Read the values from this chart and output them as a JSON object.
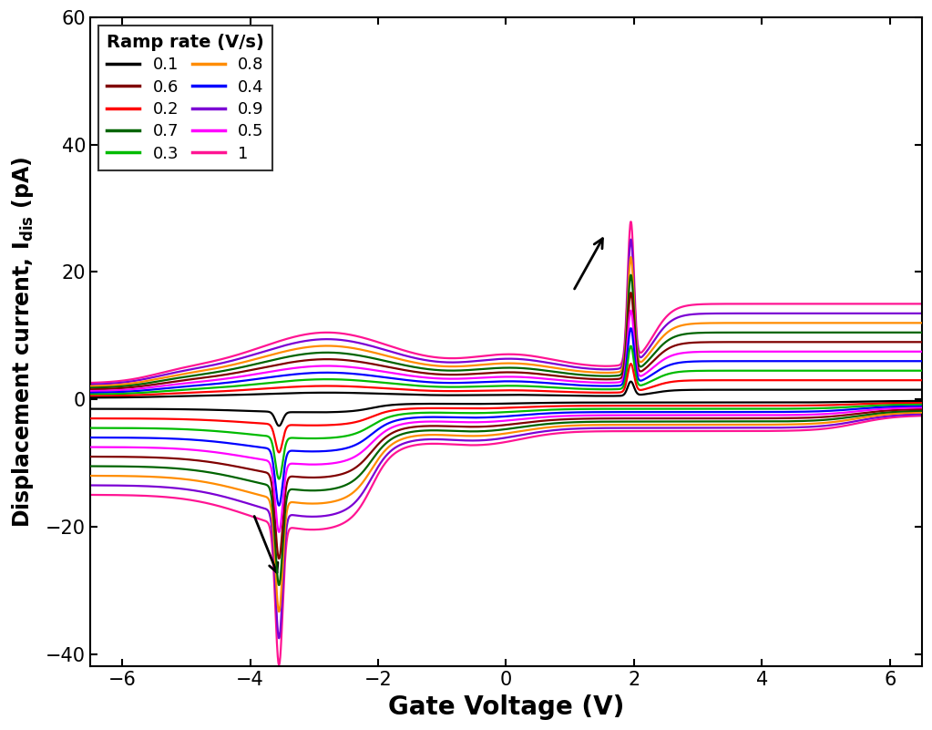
{
  "ramp_rates": [
    0.1,
    0.2,
    0.3,
    0.4,
    0.5,
    0.6,
    0.7,
    0.8,
    0.9,
    1.0
  ],
  "colors": [
    "#000000",
    "#ff0000",
    "#00bb00",
    "#0000ff",
    "#ff00ff",
    "#800000",
    "#006400",
    "#ff8c00",
    "#7b00d4",
    "#ff1493"
  ],
  "xlim": [
    -6.5,
    6.5
  ],
  "ylim": [
    -42,
    60
  ],
  "xlabel": "Gate Voltage (V)",
  "ylabel": "Displacement current, I$_{\\mathregular{dis}}$ (pA)",
  "legend_title": "Ramp rate (V/s)",
  "xticks": [
    -6,
    -4,
    -2,
    0,
    2,
    4,
    6
  ],
  "yticks": [
    -40,
    -20,
    0,
    20,
    40,
    60
  ],
  "linewidth": 1.6,
  "label_fontsize": 17,
  "tick_fontsize": 15,
  "legend_fontsize": 13
}
